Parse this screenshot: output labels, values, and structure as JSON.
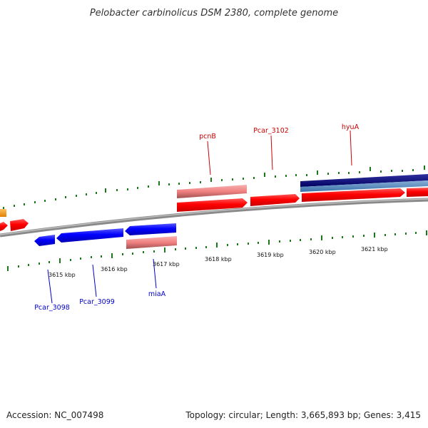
{
  "title": "Pelobacter carbinolicus DSM 2380, complete genome",
  "footer": {
    "accession": "Accession: NC_007498",
    "summary": "Topology: circular; Length: 3,665,893 bp; Genes: 3,415"
  },
  "colors": {
    "forward_gene": "#ff0000",
    "forward_gene_alt": "#f08080",
    "reverse_gene": "#0000ff",
    "reverse_gene_alt": "#f08080",
    "rna_gene": "#ff9900",
    "feature_dark": "#000080",
    "feature_light": "#4682b4",
    "backbone": "#808080",
    "tick": "#006400",
    "label_forward": "#cc0000",
    "label_reverse": "#0000cc"
  },
  "scale_labels": [
    "3615 kbp",
    "3616 kbp",
    "3617 kbp",
    "3618 kbp",
    "3619 kbp",
    "3620 kbp",
    "3621 kbp"
  ],
  "gene_labels": {
    "forward": [
      "pcnB",
      "Pcar_3102",
      "hyuA"
    ],
    "reverse": [
      "Pcar_3098",
      "Pcar_3099",
      "miaA"
    ]
  }
}
